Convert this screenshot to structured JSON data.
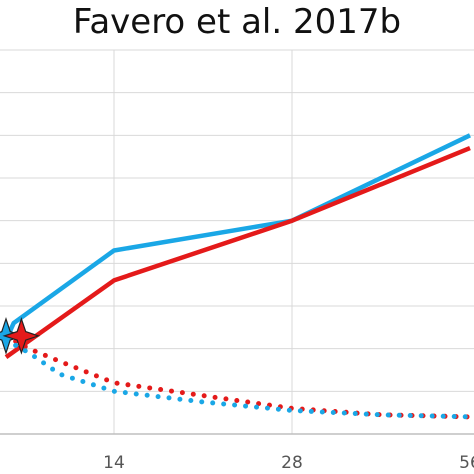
{
  "chart_data": {
    "type": "line",
    "title": "Favero et al. 2017b",
    "xlabel": "",
    "ylabel": "",
    "x_ticks": [
      0,
      14,
      28,
      56
    ],
    "x_tick_labels": [
      "",
      "14",
      "28",
      "56"
    ],
    "xlim": [
      -1,
      57
    ],
    "ylim": [
      0,
      9
    ],
    "grid": true,
    "series": [
      {
        "style": "solid",
        "color": "#1aa7e6",
        "points": [
          [
            0,
            2.2
          ],
          [
            1,
            2.6
          ],
          [
            14,
            4.3
          ],
          [
            28,
            5
          ],
          [
            56,
            7
          ]
        ]
      },
      {
        "style": "solid",
        "color": "#e41a1a",
        "points": [
          [
            0,
            1.8
          ],
          [
            14,
            3.6
          ],
          [
            28,
            5
          ],
          [
            56,
            6.7
          ]
        ]
      },
      {
        "style": "dotted",
        "color": "#e41a1a",
        "points": [
          [
            0,
            2.3
          ],
          [
            3,
            2
          ],
          [
            7,
            1.7
          ],
          [
            14,
            1.2
          ],
          [
            21,
            0.9
          ],
          [
            28,
            0.6
          ],
          [
            42,
            0.45
          ],
          [
            56,
            0.4
          ]
        ]
      },
      {
        "style": "dotted",
        "color": "#1aa7e6",
        "points": [
          [
            0,
            2.2
          ],
          [
            3,
            1.9
          ],
          [
            7,
            1.4
          ],
          [
            14,
            1
          ],
          [
            21,
            0.75
          ],
          [
            28,
            0.55
          ],
          [
            42,
            0.45
          ],
          [
            56,
            0.4
          ]
        ]
      }
    ],
    "markers": [
      {
        "shape": "star",
        "color": "#1aa7e6",
        "x": 0,
        "y": 2.3
      },
      {
        "shape": "star",
        "color": "#e41a1a",
        "x": 2,
        "y": 2.3
      }
    ]
  }
}
